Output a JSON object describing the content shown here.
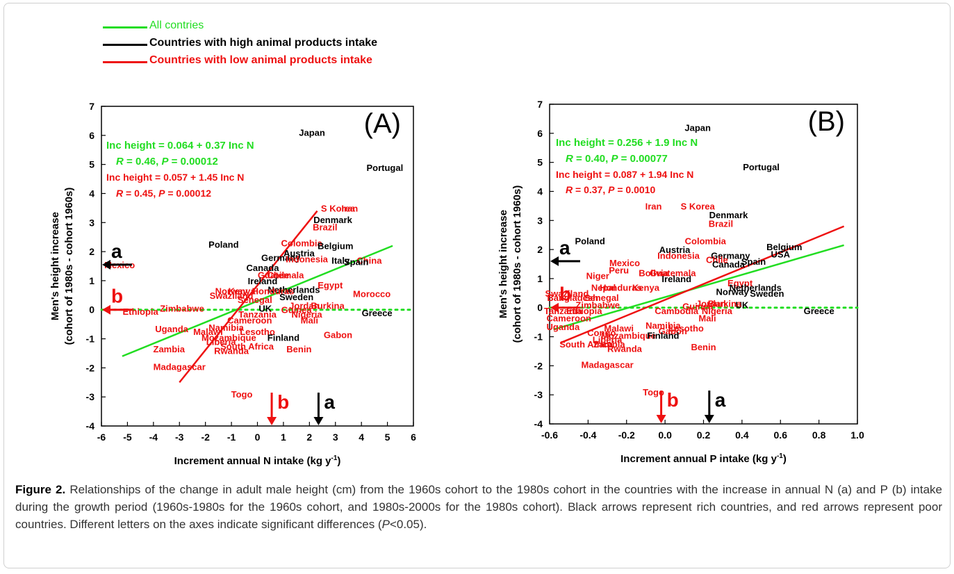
{
  "legend": [
    {
      "label": "All contries",
      "color": "#22dd22"
    },
    {
      "label": "Countries with high animal products intake",
      "color": "#000000"
    },
    {
      "label": "Countries with low animal products intake",
      "color": "#ee1111"
    }
  ],
  "colors": {
    "all": "#22dd22",
    "high": "#000000",
    "low": "#ee1111"
  },
  "caption": {
    "figure_label": "Figure 2.",
    "text_before_p": " Relationships of the change in adult male height (cm) from the 1960s cohort to the 1980s cohort in the countries with the increase in annual N (a) and P (b) intake during the growth period (1960s-1980s for the 1960s cohort, and 1980s-2000s for the 1980s cohort). Black arrows represent rich countries, and red arrows represent poor countries. Different letters on the axes indicate significant differences (",
    "p_symbol": "P",
    "text_after_p": "<0.05)."
  },
  "chart_data": [
    {
      "type": "scatter",
      "panel_label": "(A)",
      "xlabel": "Increment annual N intake (kg y",
      "xlabel_sup": "-1",
      "xlabel_end": ")",
      "ylabel": "Men's height increase",
      "ylabel2": "(cohort of 1980s - cohort 1960s)",
      "xlim": [
        -6,
        6
      ],
      "ylim": [
        -4,
        7
      ],
      "xticks": [
        "-6",
        "-5",
        "-4",
        "-3",
        "-2",
        "-1",
        "0",
        "1",
        "2",
        "3",
        "4",
        "5",
        "6"
      ],
      "yticks": [
        "-4",
        "-3",
        "-2",
        "-1",
        "0",
        "1",
        "2",
        "3",
        "4",
        "5",
        "6",
        "7"
      ],
      "equations": [
        {
          "text": "Inc height = 0.064 + 0.37 Inc N",
          "color": "green"
        },
        {
          "prefix": "R",
          "text": " = 0.46, ",
          "p": "P",
          "text2": " = 0.00012",
          "color": "green"
        },
        {
          "text": "Inc height = 0.057 + 1.45 Inc N",
          "color": "red"
        },
        {
          "prefix": "R",
          "text": " = 0.45, ",
          "p": "P",
          "text2": " = 0.00012",
          "color": "red"
        }
      ],
      "lines": [
        {
          "name": "All contries",
          "group": "all",
          "x1": -5.2,
          "y1": -1.6,
          "x2": 5.2,
          "y2": 2.2
        },
        {
          "name": "Countries with low animal products intake",
          "group": "low",
          "x1": -3.0,
          "y1": -2.5,
          "x2": 2.3,
          "y2": 3.4
        }
      ],
      "zero_line": {
        "y": 0,
        "style": "dotted"
      },
      "arrows": [
        {
          "letter": "a",
          "group": "high",
          "axis": "y",
          "value": 1.55
        },
        {
          "letter": "b",
          "group": "low",
          "axis": "y",
          "value": 0.0
        },
        {
          "letter": "b",
          "group": "low",
          "axis": "x",
          "value": 0.55
        },
        {
          "letter": "a",
          "group": "high",
          "axis": "x",
          "value": 2.35
        }
      ],
      "points": [
        {
          "label": "Japan",
          "x": 2.1,
          "y": 6.1,
          "group": "high"
        },
        {
          "label": "Portugal",
          "x": 4.9,
          "y": 4.9,
          "group": "high"
        },
        {
          "label": "S Korea",
          "x": 3.1,
          "y": 3.5,
          "group": "low"
        },
        {
          "label": "Iran",
          "x": 3.55,
          "y": 3.5,
          "group": "low"
        },
        {
          "label": "Denmark",
          "x": 2.9,
          "y": 3.1,
          "group": "high"
        },
        {
          "label": "Brazil",
          "x": 2.6,
          "y": 2.85,
          "group": "low"
        },
        {
          "label": "Poland",
          "x": -1.3,
          "y": 2.25,
          "group": "high"
        },
        {
          "label": "Colombia",
          "x": 1.7,
          "y": 2.3,
          "group": "low"
        },
        {
          "label": "Belgium",
          "x": 3.0,
          "y": 2.2,
          "group": "high"
        },
        {
          "label": "Austria",
          "x": 1.6,
          "y": 1.95,
          "group": "high"
        },
        {
          "label": "Germany",
          "x": 0.9,
          "y": 1.8,
          "group": "high"
        },
        {
          "label": "Indonesia",
          "x": 1.9,
          "y": 1.75,
          "group": "low"
        },
        {
          "label": "Italy",
          "x": 3.2,
          "y": 1.7,
          "group": "high"
        },
        {
          "label": "China",
          "x": 4.3,
          "y": 1.7,
          "group": "low"
        },
        {
          "label": "Spain",
          "x": 3.8,
          "y": 1.65,
          "group": "high"
        },
        {
          "label": "Mexico",
          "x": -5.3,
          "y": 1.55,
          "group": "low"
        },
        {
          "label": "Canada",
          "x": 0.2,
          "y": 1.45,
          "group": "high"
        },
        {
          "label": "Chile",
          "x": 0.8,
          "y": 1.2,
          "group": "low"
        },
        {
          "label": "Guatemala",
          "x": 0.9,
          "y": 1.2,
          "group": "low"
        },
        {
          "label": "Ireland",
          "x": 0.2,
          "y": 1.0,
          "group": "high"
        },
        {
          "label": "Egypt",
          "x": 2.8,
          "y": 0.85,
          "group": "low"
        },
        {
          "label": "Morocco",
          "x": 4.4,
          "y": 0.55,
          "group": "low"
        },
        {
          "label": "Netherlands",
          "x": 1.4,
          "y": 0.7,
          "group": "high"
        },
        {
          "label": "Norway",
          "x": -1.0,
          "y": 0.65,
          "group": "low"
        },
        {
          "label": "Kenya",
          "x": -0.6,
          "y": 0.65,
          "group": "low"
        },
        {
          "label": "Honduras",
          "x": 0.6,
          "y": 0.65,
          "group": "low"
        },
        {
          "label": "Sweden",
          "x": 1.5,
          "y": 0.45,
          "group": "high"
        },
        {
          "label": "Swaziland",
          "x": -1.0,
          "y": 0.5,
          "group": "low"
        },
        {
          "label": "Senegal",
          "x": -0.1,
          "y": 0.35,
          "group": "low"
        },
        {
          "label": "UK",
          "x": 0.3,
          "y": 0.05,
          "group": "high"
        },
        {
          "label": "Jordan",
          "x": 1.8,
          "y": 0.15,
          "group": "low"
        },
        {
          "label": "Burkina",
          "x": 2.7,
          "y": 0.15,
          "group": "low"
        },
        {
          "label": "Guinea",
          "x": 1.5,
          "y": 0.0,
          "group": "low"
        },
        {
          "label": "Zimbabwe",
          "x": -2.9,
          "y": 0.05,
          "group": "low"
        },
        {
          "label": "Ethiopia",
          "x": -4.5,
          "y": -0.05,
          "group": "low"
        },
        {
          "label": "Tanzania",
          "x": 0.0,
          "y": -0.15,
          "group": "low"
        },
        {
          "label": "Nigeria",
          "x": 1.9,
          "y": -0.15,
          "group": "low"
        },
        {
          "label": "Mali",
          "x": 2.0,
          "y": -0.35,
          "group": "low"
        },
        {
          "label": "Cameroon",
          "x": -0.3,
          "y": -0.35,
          "group": "low"
        },
        {
          "label": "Uganda",
          "x": -3.3,
          "y": -0.65,
          "group": "low"
        },
        {
          "label": "Namibia",
          "x": -1.2,
          "y": -0.6,
          "group": "low"
        },
        {
          "label": "Malawi",
          "x": -1.9,
          "y": -0.75,
          "group": "low"
        },
        {
          "label": "Lesotho",
          "x": 0.0,
          "y": -0.75,
          "group": "low"
        },
        {
          "label": "Mozambique",
          "x": -1.1,
          "y": -0.95,
          "group": "low"
        },
        {
          "label": "Finland",
          "x": 1.0,
          "y": -0.95,
          "group": "high"
        },
        {
          "label": "Gabon",
          "x": 3.1,
          "y": -0.85,
          "group": "low"
        },
        {
          "label": "Liberia",
          "x": -1.4,
          "y": -1.1,
          "group": "low"
        },
        {
          "label": "South Africa",
          "x": -0.4,
          "y": -1.25,
          "group": "low"
        },
        {
          "label": "Zambia",
          "x": -3.4,
          "y": -1.35,
          "group": "low"
        },
        {
          "label": "Rwanda",
          "x": -1.0,
          "y": -1.4,
          "group": "low"
        },
        {
          "label": "Benin",
          "x": 1.6,
          "y": -1.35,
          "group": "low"
        },
        {
          "label": "Greece",
          "x": 4.6,
          "y": -0.1,
          "group": "high"
        },
        {
          "label": "Madagascar",
          "x": -3.0,
          "y": -1.95,
          "group": "low"
        },
        {
          "label": "Togo",
          "x": -0.6,
          "y": -2.9,
          "group": "low"
        }
      ]
    },
    {
      "type": "scatter",
      "panel_label": "(B)",
      "xlabel": "Increment annual P intake (kg y",
      "xlabel_sup": "-1",
      "xlabel_end": ")",
      "ylabel": "Men's height increase",
      "ylabel2": "(cohort of 1980s - cohort 1960s)",
      "xlim": [
        -0.6,
        1.0
      ],
      "ylim": [
        -4,
        7
      ],
      "xticks": [
        "-0.6",
        "-0.4",
        "-0.2",
        "0.0",
        "0.2",
        "0.4",
        "0.6",
        "0.8",
        "1.0"
      ],
      "yticks": [
        "-4",
        "-3",
        "-2",
        "-1",
        "0",
        "1",
        "2",
        "3",
        "4",
        "5",
        "6",
        "7"
      ],
      "equations": [
        {
          "text": "Inc height = 0.256 + 1.9 Inc N",
          "color": "green"
        },
        {
          "prefix": "R",
          "text": " = 0.40, ",
          "p": "P",
          "text2": " = 0.00077",
          "color": "green"
        },
        {
          "text": "Inc height = 0.087 + 1.94 Inc N",
          "color": "red"
        },
        {
          "prefix": "R",
          "text": " = 0.37, ",
          "p": "P",
          "text2": " = 0.0010",
          "color": "red"
        }
      ],
      "lines": [
        {
          "name": "All contries",
          "group": "all",
          "x1": -0.58,
          "y1": -0.75,
          "x2": 0.93,
          "y2": 2.15
        },
        {
          "name": "Countries with low animal products intake",
          "group": "low",
          "x1": -0.54,
          "y1": -1.2,
          "x2": 0.93,
          "y2": 2.8
        }
      ],
      "zero_line": {
        "y": 0,
        "style": "dotted"
      },
      "arrows": [
        {
          "letter": "a",
          "group": "high",
          "axis": "y",
          "value": 1.6
        },
        {
          "letter": "b",
          "group": "low",
          "axis": "y",
          "value": 0.0
        },
        {
          "letter": "b",
          "group": "low",
          "axis": "x",
          "value": -0.02
        },
        {
          "letter": "a",
          "group": "high",
          "axis": "x",
          "value": 0.23
        }
      ],
      "points": [
        {
          "label": "Japan",
          "x": 0.17,
          "y": 6.2,
          "group": "high"
        },
        {
          "label": "Portugal",
          "x": 0.5,
          "y": 4.85,
          "group": "high"
        },
        {
          "label": "Iran",
          "x": -0.06,
          "y": 3.5,
          "group": "low"
        },
        {
          "label": "S Korea",
          "x": 0.17,
          "y": 3.5,
          "group": "low"
        },
        {
          "label": "Denmark",
          "x": 0.33,
          "y": 3.2,
          "group": "high"
        },
        {
          "label": "Brazil",
          "x": 0.29,
          "y": 2.9,
          "group": "low"
        },
        {
          "label": "Poland",
          "x": -0.39,
          "y": 2.3,
          "group": "high"
        },
        {
          "label": "Colombia",
          "x": 0.21,
          "y": 2.3,
          "group": "low"
        },
        {
          "label": "Belgium",
          "x": 0.62,
          "y": 2.1,
          "group": "high"
        },
        {
          "label": "Austria",
          "x": 0.05,
          "y": 2.0,
          "group": "high"
        },
        {
          "label": "USA",
          "x": 0.6,
          "y": 1.85,
          "group": "high"
        },
        {
          "label": "Indonesia",
          "x": 0.07,
          "y": 1.8,
          "group": "low"
        },
        {
          "label": "Germany",
          "x": 0.34,
          "y": 1.8,
          "group": "high"
        },
        {
          "label": "Chile",
          "x": 0.27,
          "y": 1.65,
          "group": "low"
        },
        {
          "label": "Spain",
          "x": 0.46,
          "y": 1.6,
          "group": "high"
        },
        {
          "label": "Canada",
          "x": 0.33,
          "y": 1.5,
          "group": "high"
        },
        {
          "label": "Mexico",
          "x": -0.21,
          "y": 1.55,
          "group": "low"
        },
        {
          "label": "Peru",
          "x": -0.24,
          "y": 1.3,
          "group": "low"
        },
        {
          "label": "Bolivia",
          "x": -0.06,
          "y": 1.2,
          "group": "low"
        },
        {
          "label": "Guatemala",
          "x": 0.04,
          "y": 1.2,
          "group": "low"
        },
        {
          "label": "Niger",
          "x": -0.35,
          "y": 1.1,
          "group": "low"
        },
        {
          "label": "Ireland",
          "x": 0.06,
          "y": 1.0,
          "group": "high"
        },
        {
          "label": "Egypt",
          "x": 0.39,
          "y": 0.85,
          "group": "low"
        },
        {
          "label": "Netherlands",
          "x": 0.47,
          "y": 0.7,
          "group": "high"
        },
        {
          "label": "Nepal",
          "x": -0.32,
          "y": 0.7,
          "group": "low"
        },
        {
          "label": "Honduras",
          "x": -0.23,
          "y": 0.7,
          "group": "low"
        },
        {
          "label": "Kenya",
          "x": -0.1,
          "y": 0.7,
          "group": "low"
        },
        {
          "label": "Norway",
          "x": 0.35,
          "y": 0.55,
          "group": "high"
        },
        {
          "label": "Sweden",
          "x": 0.53,
          "y": 0.5,
          "group": "high"
        },
        {
          "label": "Swaziland",
          "x": -0.51,
          "y": 0.5,
          "group": "low"
        },
        {
          "label": "Bangladesh",
          "x": -0.48,
          "y": 0.35,
          "group": "low"
        },
        {
          "label": "Senegal",
          "x": -0.33,
          "y": 0.35,
          "group": "low"
        },
        {
          "label": "Zimbabwe",
          "x": -0.35,
          "y": 0.1,
          "group": "low"
        },
        {
          "label": "UK",
          "x": 0.4,
          "y": 0.1,
          "group": "high"
        },
        {
          "label": "Jordan",
          "x": 0.24,
          "y": 0.15,
          "group": "low"
        },
        {
          "label": "Burkina",
          "x": 0.31,
          "y": 0.15,
          "group": "low"
        },
        {
          "label": "Guinea",
          "x": 0.17,
          "y": 0.05,
          "group": "low"
        },
        {
          "label": "Cambodia",
          "x": 0.06,
          "y": -0.1,
          "group": "low"
        },
        {
          "label": "Nigeria",
          "x": 0.27,
          "y": -0.1,
          "group": "low"
        },
        {
          "label": "Tanzania",
          "x": -0.53,
          "y": -0.1,
          "group": "low"
        },
        {
          "label": "Ethiopia",
          "x": -0.42,
          "y": -0.1,
          "group": "low"
        },
        {
          "label": "Cameroon",
          "x": -0.5,
          "y": -0.35,
          "group": "low"
        },
        {
          "label": "Mali",
          "x": 0.22,
          "y": -0.35,
          "group": "low"
        },
        {
          "label": "Greece",
          "x": 0.8,
          "y": -0.1,
          "group": "high"
        },
        {
          "label": "Uganda",
          "x": -0.53,
          "y": -0.65,
          "group": "low"
        },
        {
          "label": "Namibia",
          "x": -0.01,
          "y": -0.6,
          "group": "low"
        },
        {
          "label": "Malawi",
          "x": -0.24,
          "y": -0.7,
          "group": "low"
        },
        {
          "label": "Lesotho",
          "x": 0.11,
          "y": -0.7,
          "group": "low"
        },
        {
          "label": "Gabon",
          "x": 0.04,
          "y": -0.8,
          "group": "low"
        },
        {
          "label": "Congo",
          "x": -0.33,
          "y": -0.85,
          "group": "low"
        },
        {
          "label": "Mozambique",
          "x": -0.19,
          "y": -0.95,
          "group": "low"
        },
        {
          "label": "Finland",
          "x": -0.01,
          "y": -0.95,
          "group": "high"
        },
        {
          "label": "Liberia",
          "x": -0.3,
          "y": -1.1,
          "group": "low"
        },
        {
          "label": "South Africa",
          "x": -0.41,
          "y": -1.25,
          "group": "low"
        },
        {
          "label": "Zambia",
          "x": -0.29,
          "y": -1.25,
          "group": "low"
        },
        {
          "label": "Rwanda",
          "x": -0.21,
          "y": -1.4,
          "group": "low"
        },
        {
          "label": "Benin",
          "x": 0.2,
          "y": -1.35,
          "group": "low"
        },
        {
          "label": "Madagascar",
          "x": -0.3,
          "y": -1.95,
          "group": "low"
        },
        {
          "label": "Togo",
          "x": -0.06,
          "y": -2.9,
          "group": "low"
        }
      ]
    }
  ]
}
